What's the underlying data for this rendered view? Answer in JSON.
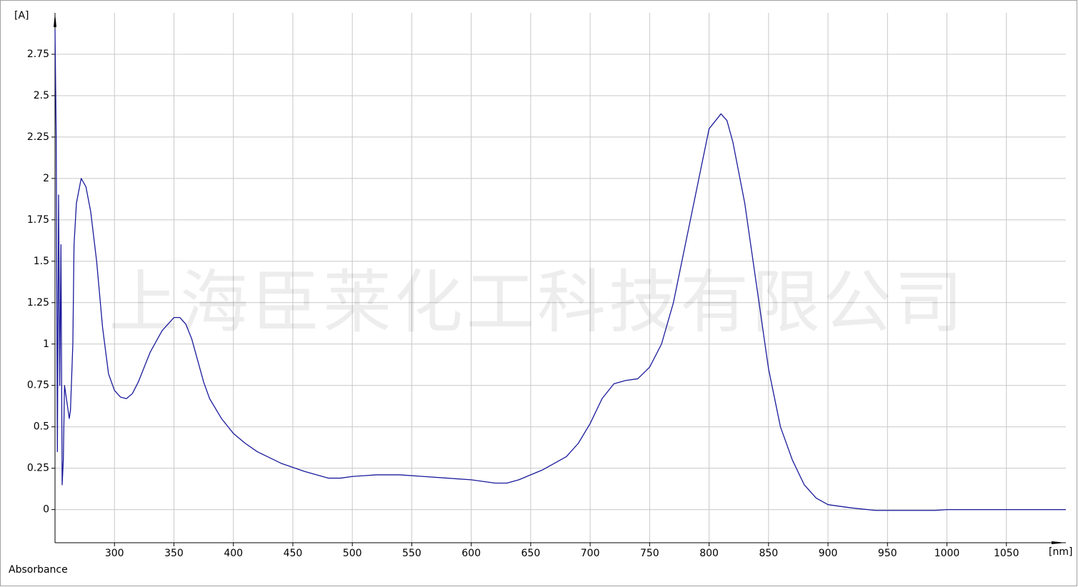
{
  "chart_data": {
    "type": "line",
    "y_label": "[A]",
    "x_label": "[nm]",
    "caption": "Absorbance",
    "watermark": "上海臣莱化工科技有限公司",
    "xlim": [
      250,
      1100
    ],
    "ylim": [
      -0.2,
      3.0
    ],
    "xticks": [
      300,
      350,
      400,
      450,
      500,
      550,
      600,
      650,
      700,
      750,
      800,
      850,
      900,
      950,
      1000,
      1050
    ],
    "yticks": [
      0,
      0.25,
      0.5,
      0.75,
      1,
      1.25,
      1.5,
      1.75,
      2,
      2.25,
      2.5,
      2.75
    ],
    "grid": true,
    "series": [
      {
        "name": "Absorbance",
        "color": "#1a1a9c",
        "x": [
          250,
          251,
          252,
          253,
          254,
          255,
          256,
          257,
          258,
          260,
          262,
          263,
          265,
          266,
          268,
          272,
          276,
          280,
          285,
          290,
          295,
          300,
          305,
          310,
          315,
          320,
          330,
          340,
          350,
          355,
          360,
          365,
          370,
          375,
          380,
          390,
          400,
          410,
          420,
          440,
          460,
          480,
          490,
          500,
          520,
          540,
          560,
          580,
          600,
          620,
          630,
          640,
          660,
          680,
          690,
          700,
          710,
          720,
          730,
          740,
          750,
          760,
          770,
          780,
          790,
          800,
          810,
          815,
          820,
          830,
          840,
          850,
          860,
          870,
          880,
          890,
          900,
          920,
          940,
          960,
          990,
          1000,
          1050,
          1100
        ],
        "values": [
          2.9,
          2.25,
          0.35,
          1.9,
          0.75,
          1.6,
          0.15,
          0.3,
          0.75,
          0.65,
          0.55,
          0.6,
          1.0,
          1.6,
          1.85,
          2.0,
          1.95,
          1.8,
          1.5,
          1.1,
          0.82,
          0.72,
          0.68,
          0.67,
          0.7,
          0.77,
          0.95,
          1.08,
          1.16,
          1.16,
          1.12,
          1.03,
          0.9,
          0.77,
          0.67,
          0.55,
          0.46,
          0.4,
          0.35,
          0.28,
          0.23,
          0.19,
          0.19,
          0.2,
          0.21,
          0.21,
          0.2,
          0.19,
          0.18,
          0.16,
          0.16,
          0.18,
          0.24,
          0.32,
          0.4,
          0.52,
          0.67,
          0.76,
          0.78,
          0.79,
          0.86,
          1.0,
          1.25,
          1.6,
          1.95,
          2.3,
          2.39,
          2.35,
          2.22,
          1.85,
          1.35,
          0.85,
          0.5,
          0.3,
          0.15,
          0.07,
          0.03,
          0.01,
          -0.005,
          -0.005,
          -0.005,
          0,
          0,
          0
        ]
      }
    ]
  }
}
